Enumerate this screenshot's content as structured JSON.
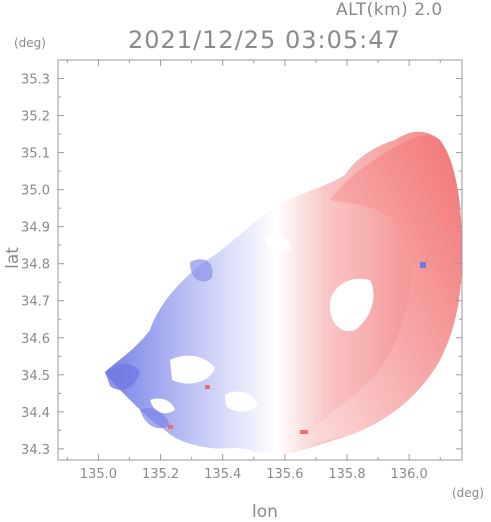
{
  "header": {
    "altitude_label": "ALT(km) 2.0",
    "timestamp": "2021/12/25 03:05:47"
  },
  "chart_data": {
    "type": "heatmap",
    "title": "2021/12/25 03:05:47",
    "subtitle": "ALT(km) 2.0",
    "xlabel": "lon",
    "ylabel": "lat",
    "x_unit": "(deg)",
    "y_unit": "(deg)",
    "xlim": [
      134.87,
      136.17
    ],
    "ylim": [
      34.27,
      35.35
    ],
    "x_ticks": [
      135.0,
      135.2,
      135.4,
      135.6,
      135.8,
      136.0
    ],
    "x_tick_labels": [
      "135.0",
      "135.2",
      "135.4",
      "135.6",
      "135.8",
      "136.0"
    ],
    "y_ticks": [
      34.3,
      34.4,
      34.5,
      34.6,
      34.7,
      34.8,
      34.9,
      35.0,
      35.1,
      35.2,
      35.3
    ],
    "y_tick_labels": [
      "34.3",
      "34.4",
      "34.5",
      "34.6",
      "34.7",
      "34.8",
      "34.9",
      "35.0",
      "35.1",
      "35.2",
      "35.3"
    ],
    "grid": false,
    "colors": {
      "negative": "#6e78e6",
      "neutral": "#ffffff",
      "positive": "#f47a7a",
      "axis": "#9a9a9a"
    },
    "regions": [
      {
        "name": "blue-west-lobe",
        "polarity": "negative",
        "lon": [
          135.05,
          135.52
        ],
        "lat": [
          34.33,
          34.92
        ]
      },
      {
        "name": "red-east-arc",
        "polarity": "positive",
        "lon": [
          135.52,
          136.16
        ],
        "lat": [
          34.3,
          35.17
        ]
      },
      {
        "name": "red-northeast-core",
        "polarity": "positive",
        "lon": [
          135.82,
          136.15
        ],
        "lat": [
          34.72,
          35.17
        ]
      }
    ]
  }
}
